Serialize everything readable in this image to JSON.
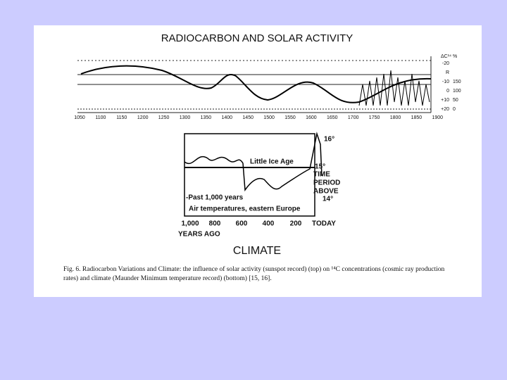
{
  "figure": {
    "top": {
      "title": "RADIOCARBON AND SOLAR ACTIVITY",
      "x_labels": [
        "1050",
        "1100",
        "1150",
        "1200",
        "1250",
        "1300",
        "1350",
        "1400",
        "1450",
        "1500",
        "1550",
        "1600",
        "1650",
        "1700",
        "1750",
        "1800",
        "1850",
        "1900"
      ],
      "right_axis_title": "ΔC¹⁴ %",
      "right_labels": [
        [
          "-20",
          ""
        ],
        [
          "R",
          ""
        ],
        [
          "-10",
          "150"
        ],
        [
          "0",
          "100"
        ],
        [
          "+10",
          "50"
        ],
        [
          "+20",
          "0"
        ]
      ]
    },
    "bottom": {
      "y_labels": [
        "16°",
        "15°",
        "14°"
      ],
      "annotations": [
        "Little Ice Age",
        "TIME",
        "PERIOD",
        "ABOVE",
        "-Past 1,000 years",
        "Air temperatures, eastern Europe"
      ],
      "x_labels": [
        "1,000",
        "800",
        "600",
        "400",
        "200",
        "TODAY"
      ],
      "x_axis_title": "YEARS AGO",
      "title": "CLIMATE"
    },
    "caption": [
      "Fig. 6.  Radiocarbon Variations and Climate: the influence of solar activity (sunspot record) (top) on ¹⁴C concentrations (cosmic ray production",
      "rates) and climate (Maunder Minimum temperature record) (bottom) [15, 16]."
    ]
  }
}
